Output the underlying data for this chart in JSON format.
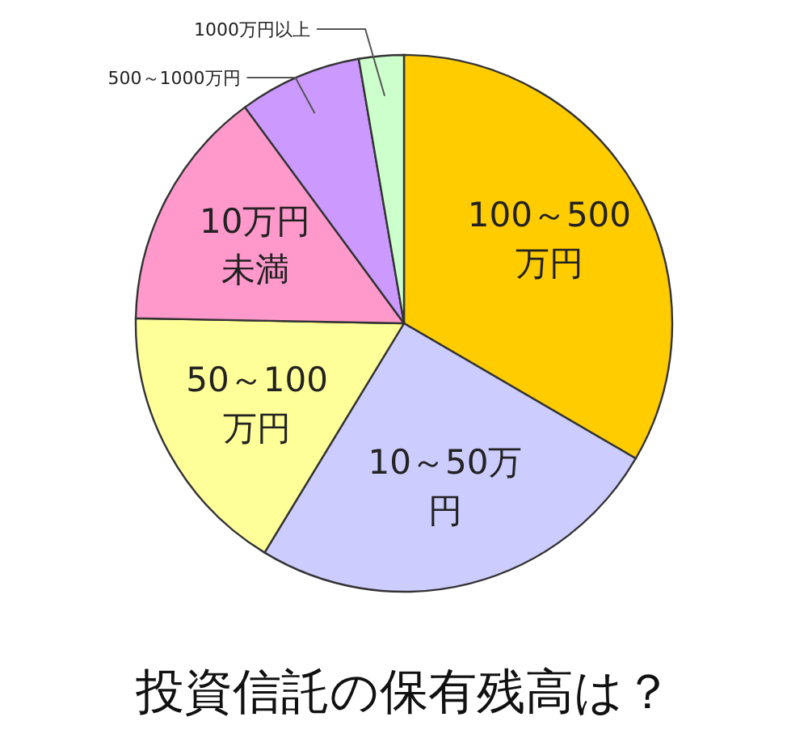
{
  "chart_data": {
    "type": "pie",
    "title": "投資信託の保有残高は？",
    "categories": [
      "100～500万円",
      "10～50万円",
      "50～100万円",
      "10万円未満",
      "500～1000万円",
      "1000万円以上"
    ],
    "values": [
      33.4,
      25.3,
      16.6,
      14.6,
      7.4,
      2.7
    ],
    "colors": [
      "#ffcc00",
      "#ccccff",
      "#ffff99",
      "#ff99cc",
      "#cc99ff",
      "#ccffcc"
    ]
  }
}
